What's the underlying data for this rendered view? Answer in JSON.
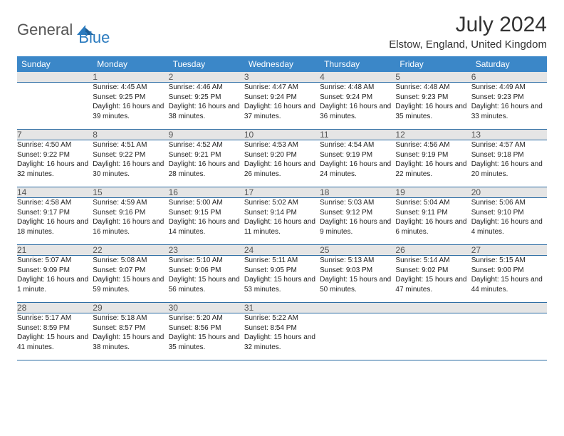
{
  "logo": {
    "general": "General",
    "blue": "Blue"
  },
  "header": {
    "title": "July 2024",
    "subtitle": "Elstow, England, United Kingdom"
  },
  "colors": {
    "header_bg": "#3b87c8",
    "header_text": "#ffffff",
    "daynum_bg": "#e5e5e5",
    "daynum_text": "#555555",
    "row_divider": "#2b6ca3",
    "logo_blue": "#2b7bbf",
    "logo_gray": "#555555"
  },
  "weekdays": [
    "Sunday",
    "Monday",
    "Tuesday",
    "Wednesday",
    "Thursday",
    "Friday",
    "Saturday"
  ],
  "weeks": [
    {
      "nums": [
        "",
        "1",
        "2",
        "3",
        "4",
        "5",
        "6"
      ],
      "cells": [
        {},
        {
          "sunrise": "Sunrise: 4:45 AM",
          "sunset": "Sunset: 9:25 PM",
          "daylight": "Daylight: 16 hours and 39 minutes."
        },
        {
          "sunrise": "Sunrise: 4:46 AM",
          "sunset": "Sunset: 9:25 PM",
          "daylight": "Daylight: 16 hours and 38 minutes."
        },
        {
          "sunrise": "Sunrise: 4:47 AM",
          "sunset": "Sunset: 9:24 PM",
          "daylight": "Daylight: 16 hours and 37 minutes."
        },
        {
          "sunrise": "Sunrise: 4:48 AM",
          "sunset": "Sunset: 9:24 PM",
          "daylight": "Daylight: 16 hours and 36 minutes."
        },
        {
          "sunrise": "Sunrise: 4:48 AM",
          "sunset": "Sunset: 9:23 PM",
          "daylight": "Daylight: 16 hours and 35 minutes."
        },
        {
          "sunrise": "Sunrise: 4:49 AM",
          "sunset": "Sunset: 9:23 PM",
          "daylight": "Daylight: 16 hours and 33 minutes."
        }
      ]
    },
    {
      "nums": [
        "7",
        "8",
        "9",
        "10",
        "11",
        "12",
        "13"
      ],
      "cells": [
        {
          "sunrise": "Sunrise: 4:50 AM",
          "sunset": "Sunset: 9:22 PM",
          "daylight": "Daylight: 16 hours and 32 minutes."
        },
        {
          "sunrise": "Sunrise: 4:51 AM",
          "sunset": "Sunset: 9:22 PM",
          "daylight": "Daylight: 16 hours and 30 minutes."
        },
        {
          "sunrise": "Sunrise: 4:52 AM",
          "sunset": "Sunset: 9:21 PM",
          "daylight": "Daylight: 16 hours and 28 minutes."
        },
        {
          "sunrise": "Sunrise: 4:53 AM",
          "sunset": "Sunset: 9:20 PM",
          "daylight": "Daylight: 16 hours and 26 minutes."
        },
        {
          "sunrise": "Sunrise: 4:54 AM",
          "sunset": "Sunset: 9:19 PM",
          "daylight": "Daylight: 16 hours and 24 minutes."
        },
        {
          "sunrise": "Sunrise: 4:56 AM",
          "sunset": "Sunset: 9:19 PM",
          "daylight": "Daylight: 16 hours and 22 minutes."
        },
        {
          "sunrise": "Sunrise: 4:57 AM",
          "sunset": "Sunset: 9:18 PM",
          "daylight": "Daylight: 16 hours and 20 minutes."
        }
      ]
    },
    {
      "nums": [
        "14",
        "15",
        "16",
        "17",
        "18",
        "19",
        "20"
      ],
      "cells": [
        {
          "sunrise": "Sunrise: 4:58 AM",
          "sunset": "Sunset: 9:17 PM",
          "daylight": "Daylight: 16 hours and 18 minutes."
        },
        {
          "sunrise": "Sunrise: 4:59 AM",
          "sunset": "Sunset: 9:16 PM",
          "daylight": "Daylight: 16 hours and 16 minutes."
        },
        {
          "sunrise": "Sunrise: 5:00 AM",
          "sunset": "Sunset: 9:15 PM",
          "daylight": "Daylight: 16 hours and 14 minutes."
        },
        {
          "sunrise": "Sunrise: 5:02 AM",
          "sunset": "Sunset: 9:14 PM",
          "daylight": "Daylight: 16 hours and 11 minutes."
        },
        {
          "sunrise": "Sunrise: 5:03 AM",
          "sunset": "Sunset: 9:12 PM",
          "daylight": "Daylight: 16 hours and 9 minutes."
        },
        {
          "sunrise": "Sunrise: 5:04 AM",
          "sunset": "Sunset: 9:11 PM",
          "daylight": "Daylight: 16 hours and 6 minutes."
        },
        {
          "sunrise": "Sunrise: 5:06 AM",
          "sunset": "Sunset: 9:10 PM",
          "daylight": "Daylight: 16 hours and 4 minutes."
        }
      ]
    },
    {
      "nums": [
        "21",
        "22",
        "23",
        "24",
        "25",
        "26",
        "27"
      ],
      "cells": [
        {
          "sunrise": "Sunrise: 5:07 AM",
          "sunset": "Sunset: 9:09 PM",
          "daylight": "Daylight: 16 hours and 1 minute."
        },
        {
          "sunrise": "Sunrise: 5:08 AM",
          "sunset": "Sunset: 9:07 PM",
          "daylight": "Daylight: 15 hours and 59 minutes."
        },
        {
          "sunrise": "Sunrise: 5:10 AM",
          "sunset": "Sunset: 9:06 PM",
          "daylight": "Daylight: 15 hours and 56 minutes."
        },
        {
          "sunrise": "Sunrise: 5:11 AM",
          "sunset": "Sunset: 9:05 PM",
          "daylight": "Daylight: 15 hours and 53 minutes."
        },
        {
          "sunrise": "Sunrise: 5:13 AM",
          "sunset": "Sunset: 9:03 PM",
          "daylight": "Daylight: 15 hours and 50 minutes."
        },
        {
          "sunrise": "Sunrise: 5:14 AM",
          "sunset": "Sunset: 9:02 PM",
          "daylight": "Daylight: 15 hours and 47 minutes."
        },
        {
          "sunrise": "Sunrise: 5:15 AM",
          "sunset": "Sunset: 9:00 PM",
          "daylight": "Daylight: 15 hours and 44 minutes."
        }
      ]
    },
    {
      "nums": [
        "28",
        "29",
        "30",
        "31",
        "",
        "",
        ""
      ],
      "cells": [
        {
          "sunrise": "Sunrise: 5:17 AM",
          "sunset": "Sunset: 8:59 PM",
          "daylight": "Daylight: 15 hours and 41 minutes."
        },
        {
          "sunrise": "Sunrise: 5:18 AM",
          "sunset": "Sunset: 8:57 PM",
          "daylight": "Daylight: 15 hours and 38 minutes."
        },
        {
          "sunrise": "Sunrise: 5:20 AM",
          "sunset": "Sunset: 8:56 PM",
          "daylight": "Daylight: 15 hours and 35 minutes."
        },
        {
          "sunrise": "Sunrise: 5:22 AM",
          "sunset": "Sunset: 8:54 PM",
          "daylight": "Daylight: 15 hours and 32 minutes."
        },
        {},
        {},
        {}
      ]
    }
  ]
}
